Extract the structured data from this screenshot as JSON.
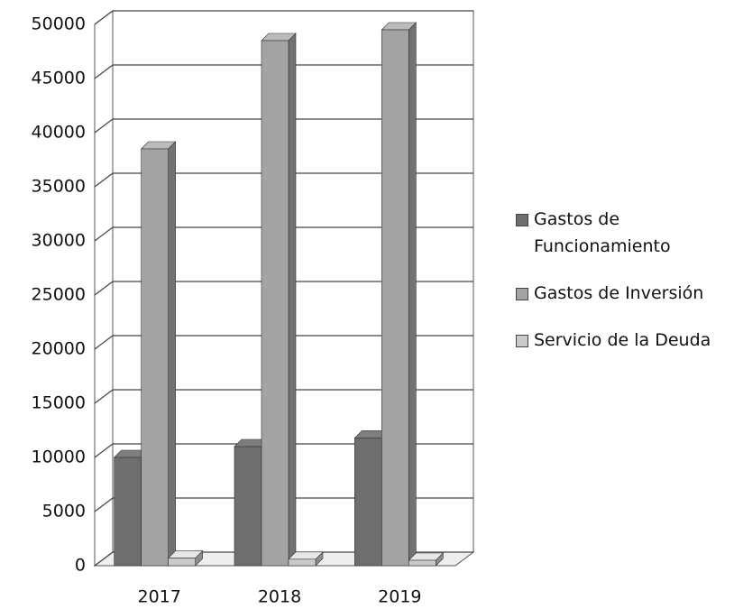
{
  "chart_data": {
    "type": "bar3d",
    "categories": [
      "2017",
      "2018",
      "2019"
    ],
    "series": [
      {
        "name": "Gastos de Funcionamiento",
        "color": "#6e6e6e",
        "values": [
          10000,
          11000,
          11800
        ]
      },
      {
        "name": "Gastos de Inversión",
        "color": "#a3a3a3",
        "values": [
          38500,
          48500,
          49500
        ]
      },
      {
        "name": "Servicio de la Deuda",
        "color": "#c9c9c9",
        "values": [
          700,
          600,
          500
        ]
      }
    ],
    "ylim": [
      0,
      50000
    ],
    "yticks": [
      0,
      5000,
      10000,
      15000,
      20000,
      25000,
      30000,
      35000,
      40000,
      45000,
      50000
    ],
    "grid": true,
    "legend": "right"
  }
}
